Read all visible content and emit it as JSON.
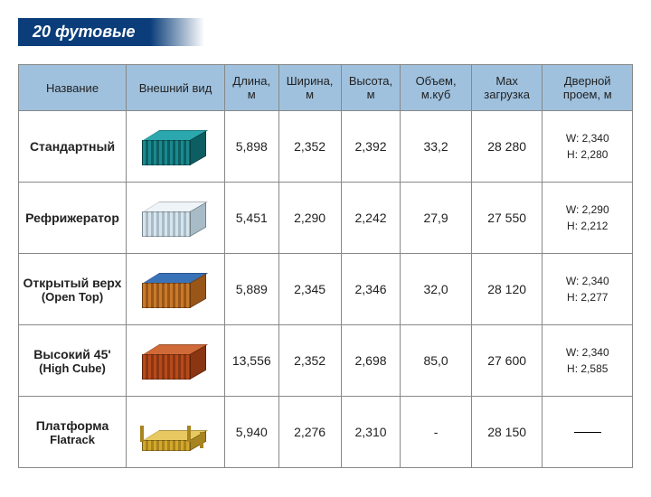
{
  "title": "20 футовые",
  "headers": {
    "name": "Название",
    "look": "Внешний вид",
    "length": "Длина, м",
    "width": "Ширина, м",
    "height": "Высота, м",
    "volume": "Объем, м.куб",
    "maxload": "Max загрузка",
    "door": "Дверной проем, м"
  },
  "col_widths": {
    "name": 110,
    "look": 102,
    "length": 68,
    "width": 72,
    "height": 70,
    "volume": 70,
    "maxload": 80,
    "door": 90
  },
  "header_style": {
    "bg": "#9fc1de",
    "border": "#888888",
    "fontsize": 13,
    "color": "#222222"
  },
  "title_style": {
    "bg": "#0a3d7a",
    "color": "#ffffff",
    "fontsize": 18,
    "italic": true,
    "bold": true
  },
  "cell_style": {
    "fontsize": 14,
    "color": "#222222",
    "name_bold": true,
    "door_fontsize": 12
  },
  "rows": [
    {
      "name_ru": "Стандартный",
      "name_en": "",
      "length": "5,898",
      "width": "2,352",
      "height": "2,392",
      "volume": "33,2",
      "maxload": "28 280",
      "door_w": "W: 2,340",
      "door_h": "H: 2,280",
      "container": {
        "type": "box",
        "c1": "#1a8a8f",
        "c2": "#0d5e62",
        "c3": "#2aa8ad"
      }
    },
    {
      "name_ru": "Рефрижератор",
      "name_en": "",
      "length": "5,451",
      "width": "2,290",
      "height": "2,242",
      "volume": "27,9",
      "maxload": "27 550",
      "door_w": "W: 2,290",
      "door_h": "H: 2,212",
      "container": {
        "type": "box",
        "c1": "#d8e4ec",
        "c2": "#a8bcc8",
        "c3": "#eef4f8"
      }
    },
    {
      "name_ru": "Открытый верх",
      "name_en": "(Open Top)",
      "length": "5,889",
      "width": "2,345",
      "height": "2,346",
      "volume": "32,0",
      "maxload": "28 120",
      "door_w": "W: 2,340",
      "door_h": "H: 2,277",
      "container": {
        "type": "box",
        "c1": "#c97a2a",
        "c2": "#9a5618",
        "c3": "#3a72b8"
      }
    },
    {
      "name_ru": "Высокий 45'",
      "name_en": "(High Cube)",
      "length": "13,556",
      "width": "2,352",
      "height": "2,698",
      "volume": "85,0",
      "maxload": "27 600",
      "door_w": "W: 2,340",
      "door_h": "H: 2,585",
      "container": {
        "type": "box",
        "c1": "#b84a1a",
        "c2": "#8a3612",
        "c3": "#d06a38"
      }
    },
    {
      "name_ru": "Платформа",
      "name_en": "Flatrack",
      "length": "5,940",
      "width": "2,276",
      "height": "2,310",
      "volume": "-",
      "maxload": "28 150",
      "door_w": "",
      "door_h": "",
      "container": {
        "type": "flat",
        "c1": "#d4a82a",
        "c2": "#a88420",
        "c3": "#e8c860"
      }
    }
  ]
}
